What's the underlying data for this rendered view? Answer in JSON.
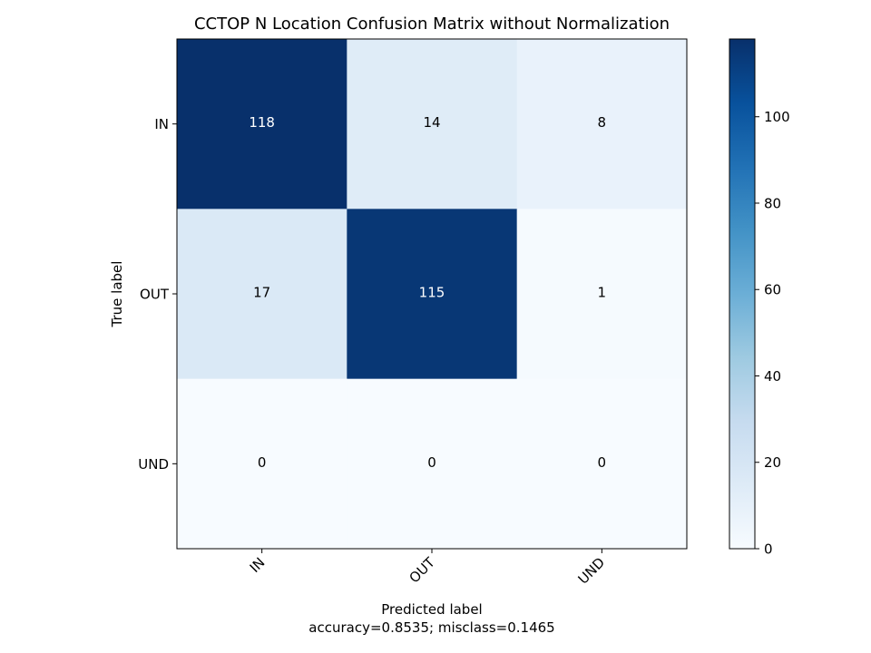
{
  "chart_data": {
    "type": "heatmap",
    "title": "CCTOP N Location Confusion Matrix without Normalization",
    "xlabel": "Predicted label",
    "xlabel_sub": "accuracy=0.8535; misclass=0.1465",
    "ylabel": "True label",
    "x_categories": [
      "IN",
      "OUT",
      "UND"
    ],
    "y_categories": [
      "IN",
      "OUT",
      "UND"
    ],
    "values": [
      [
        118,
        14,
        8
      ],
      [
        17,
        115,
        1
      ],
      [
        0,
        0,
        0
      ]
    ],
    "colorbar": {
      "range": [
        0,
        118
      ],
      "ticks": [
        0,
        20,
        40,
        60,
        80,
        100
      ],
      "colormap": "Blues"
    },
    "x_tick_rotation": "45 degrees",
    "grid": false
  }
}
